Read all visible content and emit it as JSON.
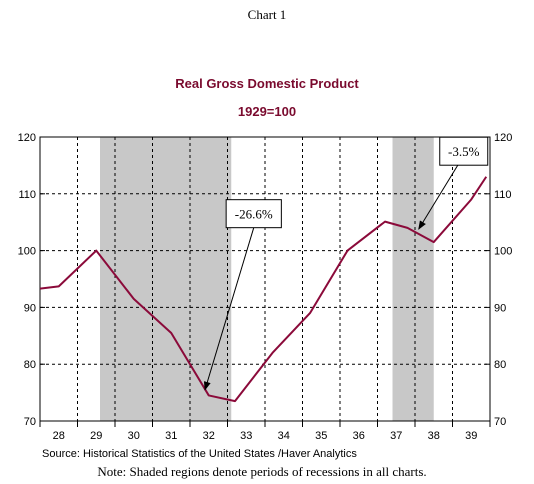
{
  "header": "Chart 1",
  "note": "Note:  Shaded regions denote periods of recessions in all charts.",
  "colors": {
    "line": "#8b0a3a",
    "title": "#7a0a2e",
    "recession": "#c8c8c8"
  },
  "chart_data": {
    "type": "line",
    "title": "Real Gross Domestic Product",
    "subtitle": "1929=100",
    "source": "Source:  Historical Statistics of the United States /Haver Analytics",
    "x_tick_labels": [
      "28",
      "29",
      "30",
      "31",
      "32",
      "33",
      "34",
      "35",
      "36",
      "37",
      "38",
      "39"
    ],
    "xlim": [
      1928,
      1940
    ],
    "ylim": [
      70,
      120
    ],
    "y_ticks": [
      70,
      80,
      90,
      100,
      110,
      120
    ],
    "grid": true,
    "recessions": [
      [
        1929.6,
        1933.1
      ],
      [
        1937.4,
        1938.5
      ]
    ],
    "series": [
      {
        "x": [
          1928.0,
          1928.5,
          1929.5,
          1930.5,
          1931.5,
          1932.5,
          1933.2,
          1934.2,
          1935.2,
          1936.2,
          1937.2,
          1937.8,
          1938.5,
          1939.5,
          1939.9
        ],
        "y": [
          93.3,
          93.7,
          100.0,
          91.5,
          85.5,
          74.5,
          73.5,
          82.0,
          89.0,
          100.0,
          105.1,
          104.0,
          101.5,
          109.0,
          113.0
        ]
      }
    ],
    "annotations": [
      {
        "text": "-26.6%",
        "box": [
          1933.7,
          106.5
        ],
        "arrow_to": [
          1932.4,
          75.5
        ]
      },
      {
        "text": "-3.5%",
        "box": [
          1939.3,
          117.5
        ],
        "arrow_to": [
          1938.1,
          103.8
        ]
      }
    ]
  }
}
